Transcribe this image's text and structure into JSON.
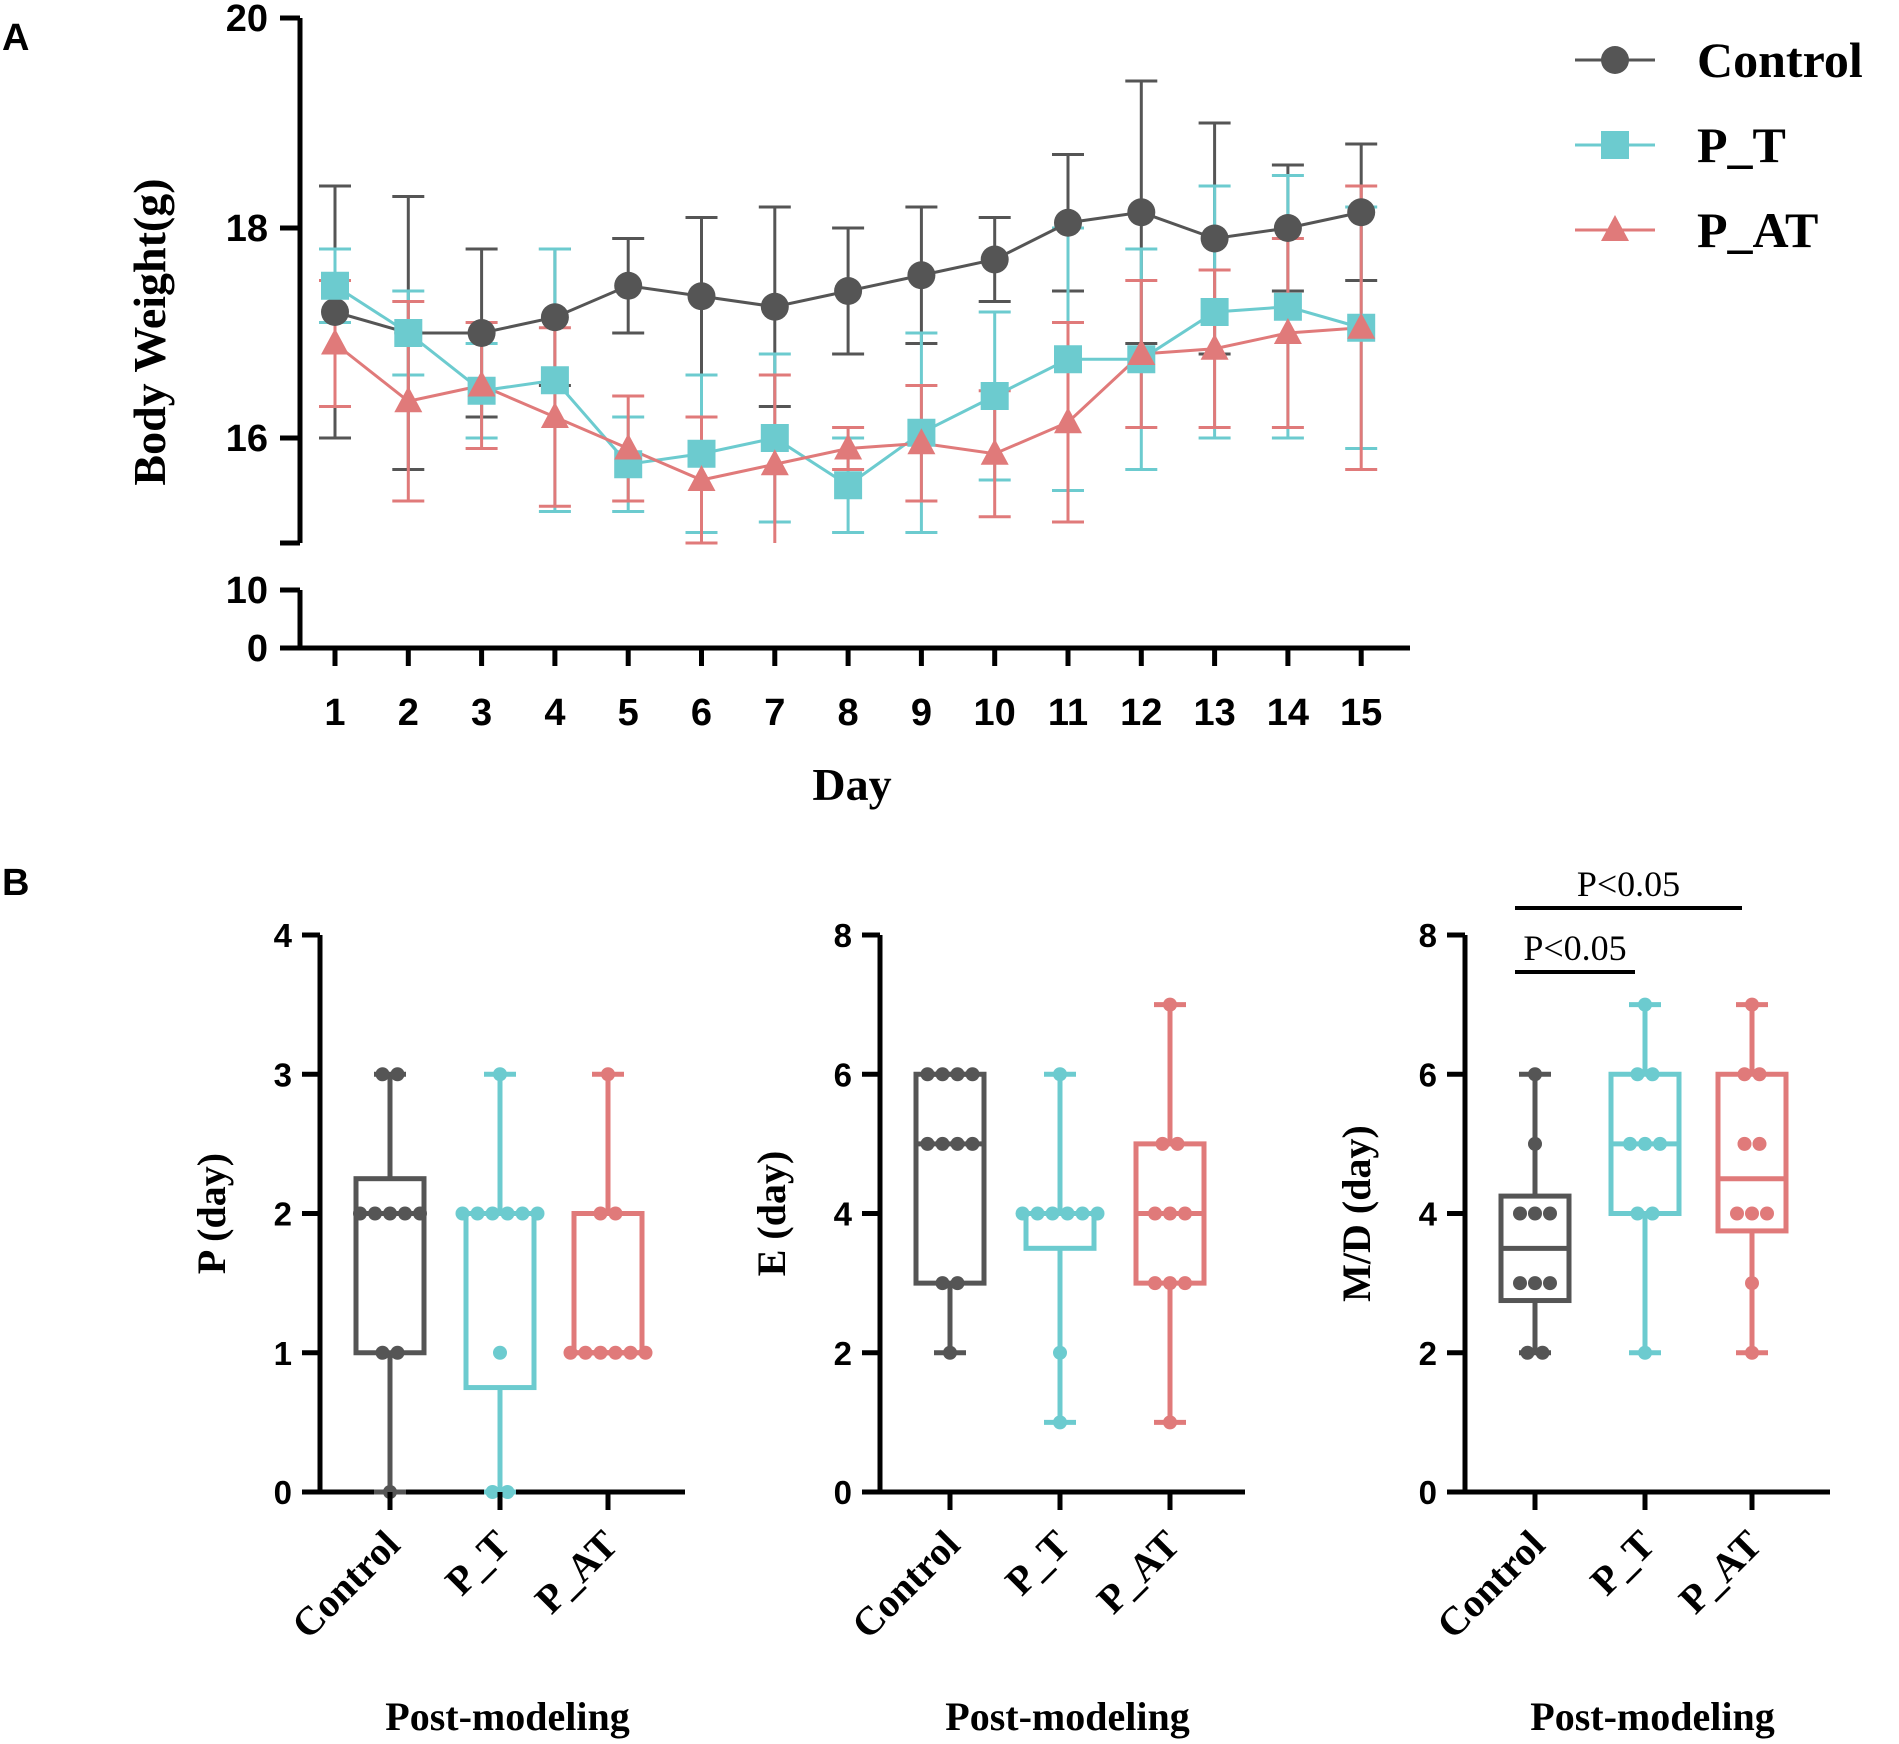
{
  "panels": {
    "a": "A",
    "b": "B"
  },
  "chart_data": [
    {
      "id": "A",
      "type": "line",
      "title": "",
      "xlabel": "Day",
      "ylabel": "Body Weight(g)",
      "x": [
        1,
        2,
        3,
        4,
        5,
        6,
        7,
        8,
        9,
        10,
        11,
        12,
        13,
        14,
        15
      ],
      "x_tick_labels": [
        "1",
        "2",
        "3",
        "4",
        "5",
        "6",
        "7",
        "8",
        "9",
        "10",
        "11",
        "12",
        "13",
        "14",
        "15"
      ],
      "y_axis_break": true,
      "ylim_upper": [
        15,
        20
      ],
      "ylim_lower": [
        0,
        10
      ],
      "y_ticks_upper": [
        "20",
        "18",
        "16"
      ],
      "y_ticks_lower": [
        "10",
        "0"
      ],
      "error_bars": "SD",
      "legend_position": "top-right",
      "series": [
        {
          "name": "Control",
          "marker": "circle",
          "color": "#555555",
          "values": [
            17.2,
            17.0,
            17.0,
            17.15,
            17.45,
            17.35,
            17.25,
            17.4,
            17.55,
            17.7,
            18.05,
            18.15,
            17.9,
            18.0,
            18.15
          ],
          "errors": [
            1.2,
            1.3,
            0.8,
            0.65,
            0.45,
            0.75,
            0.95,
            0.6,
            0.65,
            0.4,
            0.65,
            1.25,
            1.1,
            0.6,
            0.65
          ]
        },
        {
          "name": "P_T",
          "marker": "square",
          "color": "#6ccbcf",
          "values": [
            17.45,
            17.0,
            16.45,
            16.55,
            15.75,
            15.85,
            16.0,
            15.55,
            16.05,
            16.4,
            16.75,
            16.75,
            17.2,
            17.25,
            17.05
          ],
          "errors": [
            0.35,
            0.4,
            0.45,
            1.25,
            0.45,
            0.75,
            0.8,
            0.45,
            0.95,
            0.8,
            1.25,
            1.05,
            1.2,
            1.25,
            1.15
          ]
        },
        {
          "name": "P_AT",
          "marker": "triangle",
          "color": "#e07a7a",
          "values": [
            16.9,
            16.35,
            16.5,
            16.2,
            15.9,
            15.6,
            15.75,
            15.9,
            15.95,
            15.85,
            16.15,
            16.8,
            16.85,
            17.0,
            17.05
          ],
          "errors": [
            0.6,
            0.95,
            0.6,
            0.85,
            0.5,
            0.6,
            0.85,
            0.2,
            0.55,
            0.6,
            0.95,
            0.7,
            0.75,
            0.9,
            1.35
          ]
        }
      ]
    },
    {
      "id": "B1",
      "type": "box",
      "xlabel": "Post-modeling",
      "ylabel": "P (day)",
      "ylim": [
        0,
        4
      ],
      "y_ticks": [
        "0",
        "1",
        "2",
        "3",
        "4"
      ],
      "categories": [
        "Control",
        "P_T",
        "P_AT"
      ],
      "boxes": [
        {
          "name": "Control",
          "color": "#555555",
          "min": 0,
          "q1": 1,
          "median": 2,
          "q3": 2.25,
          "max": 3,
          "points": [
            0,
            1,
            1,
            2,
            2,
            2,
            2,
            2,
            3,
            3
          ]
        },
        {
          "name": "P_T",
          "color": "#6ccbcf",
          "min": 0,
          "q1": 0.75,
          "median": 2,
          "q3": 2,
          "max": 3,
          "points": [
            0,
            0,
            1,
            2,
            2,
            2,
            2,
            2,
            2,
            3
          ]
        },
        {
          "name": "P_AT",
          "color": "#e07a7a",
          "min": 1,
          "q1": 1,
          "median": 1,
          "q3": 2,
          "max": 3,
          "points": [
            1,
            1,
            1,
            1,
            1,
            1,
            2,
            2,
            3
          ]
        }
      ]
    },
    {
      "id": "B2",
      "type": "box",
      "xlabel": "Post-modeling",
      "ylabel": "E (day)",
      "ylim": [
        0,
        8
      ],
      "y_ticks": [
        "0",
        "2",
        "4",
        "6",
        "8"
      ],
      "categories": [
        "Control",
        "P_T",
        "P_AT"
      ],
      "boxes": [
        {
          "name": "Control",
          "color": "#555555",
          "min": 2,
          "q1": 3,
          "median": 5,
          "q3": 6,
          "max": 6,
          "points": [
            2,
            3,
            3,
            5,
            5,
            5,
            5,
            6,
            6,
            6,
            6
          ]
        },
        {
          "name": "P_T",
          "color": "#6ccbcf",
          "min": 1,
          "q1": 3.5,
          "median": 4,
          "q3": 4,
          "max": 6,
          "points": [
            1,
            2,
            4,
            4,
            4,
            4,
            4,
            4,
            6
          ]
        },
        {
          "name": "P_AT",
          "color": "#e07a7a",
          "min": 1,
          "q1": 3,
          "median": 4,
          "q3": 5,
          "max": 7,
          "points": [
            1,
            3,
            3,
            3,
            4,
            4,
            4,
            5,
            5,
            7
          ]
        }
      ]
    },
    {
      "id": "B3",
      "type": "box",
      "xlabel": "Post-modeling",
      "ylabel": "M/D (day)",
      "ylim": [
        0,
        8
      ],
      "y_ticks": [
        "0",
        "2",
        "4",
        "6",
        "8"
      ],
      "categories": [
        "Control",
        "P_T",
        "P_AT"
      ],
      "significance": [
        {
          "from": "Control",
          "to": "P_T",
          "label": "P<0.05"
        },
        {
          "from": "Control",
          "to": "P_AT",
          "label": "P<0.05"
        }
      ],
      "boxes": [
        {
          "name": "Control",
          "color": "#555555",
          "min": 2,
          "q1": 2.75,
          "median": 3.5,
          "q3": 4.25,
          "max": 6,
          "points": [
            2,
            2,
            3,
            3,
            3,
            4,
            4,
            4,
            5,
            6
          ]
        },
        {
          "name": "P_T",
          "color": "#6ccbcf",
          "min": 2,
          "q1": 4,
          "median": 5,
          "q3": 6,
          "max": 7,
          "points": [
            2,
            4,
            4,
            5,
            5,
            5,
            6,
            6,
            7
          ]
        },
        {
          "name": "P_AT",
          "color": "#e07a7a",
          "min": 2,
          "q1": 3.75,
          "median": 4.5,
          "q3": 6,
          "max": 7,
          "points": [
            2,
            3,
            4,
            4,
            4,
            5,
            5,
            6,
            6,
            7
          ]
        }
      ]
    }
  ]
}
